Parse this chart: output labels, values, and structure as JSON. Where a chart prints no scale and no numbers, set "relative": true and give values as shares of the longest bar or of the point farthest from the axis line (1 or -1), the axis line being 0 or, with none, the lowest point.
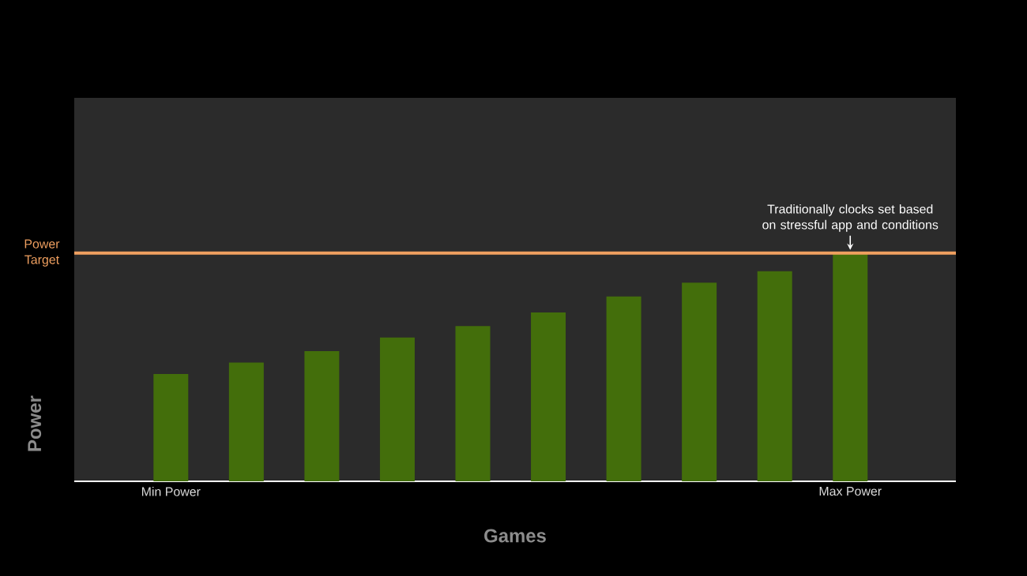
{
  "chart_data": {
    "type": "bar",
    "relative": true,
    "xlabel": "Games",
    "ylabel": "Power",
    "categories": [
      "Min Power",
      null,
      null,
      null,
      null,
      null,
      null,
      null,
      null,
      "Max Power"
    ],
    "values": [
      0.47,
      0.52,
      0.57,
      0.63,
      0.68,
      0.74,
      0.81,
      0.87,
      0.92,
      1.0
    ],
    "color": "#436e0b",
    "ref_lines": [
      {
        "axis": "y",
        "value": 1.0,
        "label": "Power Target",
        "color": "#f0a060"
      }
    ],
    "annotations": [
      {
        "text": "Traditionally clocks set based on stressful app and conditions",
        "x": "Max Power",
        "y": 1.0
      }
    ]
  }
}
